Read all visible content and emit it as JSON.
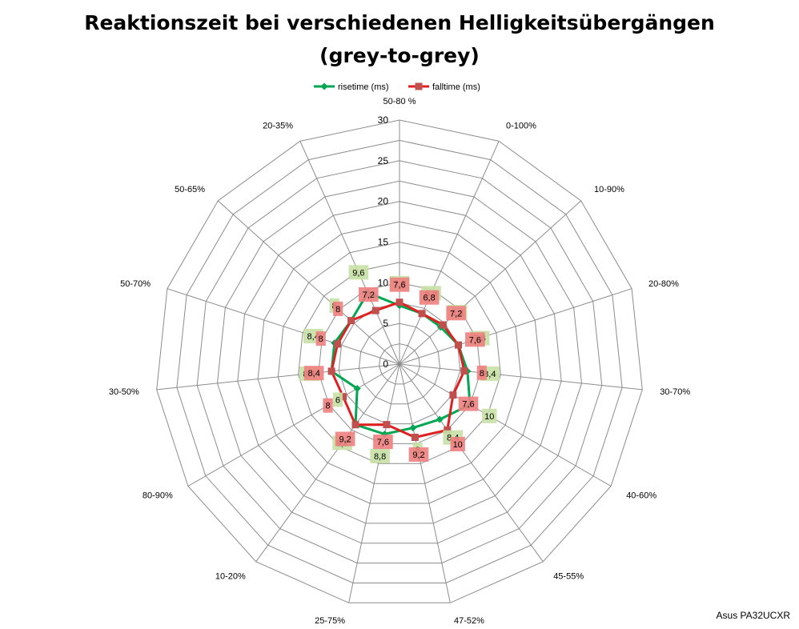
{
  "chart_data": {
    "type": "radar",
    "title_line1": "Reaktionszeit bei verschiedenen Helligkeitsübergängen",
    "title_line2": "(grey-to-grey)",
    "categories": [
      "50-80 %",
      "0-100%",
      "10-90%",
      "20-80%",
      "30-70%",
      "40-60%",
      "45-55%",
      "47-52%",
      "25-75%",
      "10-20%",
      "80-90%",
      "30-50%",
      "50-70%",
      "50-65%",
      "20-35%"
    ],
    "category_labels": [
      "50-80 %",
      "0-100%",
      "10-90%",
      "20-80%",
      "30-70%",
      "40-60%",
      "45-55%",
      "47-52%",
      "25-75%",
      "10-20%",
      "80-90%",
      "30-50%",
      "50-70%",
      "50-65%",
      "20-35%"
    ],
    "r_range": [
      0,
      30
    ],
    "r_ticks": [
      0,
      5,
      10,
      15,
      20,
      25,
      30
    ],
    "r_tick_labels": [
      "0",
      "5",
      "10",
      "15",
      "20",
      "25",
      "30"
    ],
    "series": [
      {
        "name": "risetime (ms)",
        "color": "#00a651",
        "label_bg": "#c6e0a4",
        "marker": "diamond",
        "values": [
          7.2,
          6.8,
          6.8,
          7.6,
          8.4,
          10,
          8.4,
          8,
          8.8,
          9.2,
          6,
          8.4,
          8.4,
          8,
          9.6
        ],
        "data_labels": [
          "7,2",
          "6,8",
          "6,8",
          "7,6",
          "8,4",
          "10",
          "8,4",
          "8",
          "8,8",
          "9,2",
          "6",
          "8,4",
          "8,4",
          "8",
          "9,6"
        ]
      },
      {
        "name": "falltime (ms)",
        "color": "#e02020",
        "label_bg": "#f08080",
        "marker": "square",
        "values": [
          7.6,
          6.8,
          7.2,
          7.6,
          8,
          7.6,
          10,
          9.2,
          7.6,
          9.2,
          8,
          8.4,
          8,
          8,
          7.2
        ],
        "data_labels": [
          "7,6",
          "6,8",
          "7,2",
          "7,6",
          "8",
          "7,6",
          "10",
          "9,2",
          "7,6",
          "9,2",
          "8",
          "8,4",
          "8",
          "8",
          "7,2"
        ]
      }
    ],
    "legend_position": "top",
    "grid": true
  },
  "watermark": "Asus PA32UCXR"
}
